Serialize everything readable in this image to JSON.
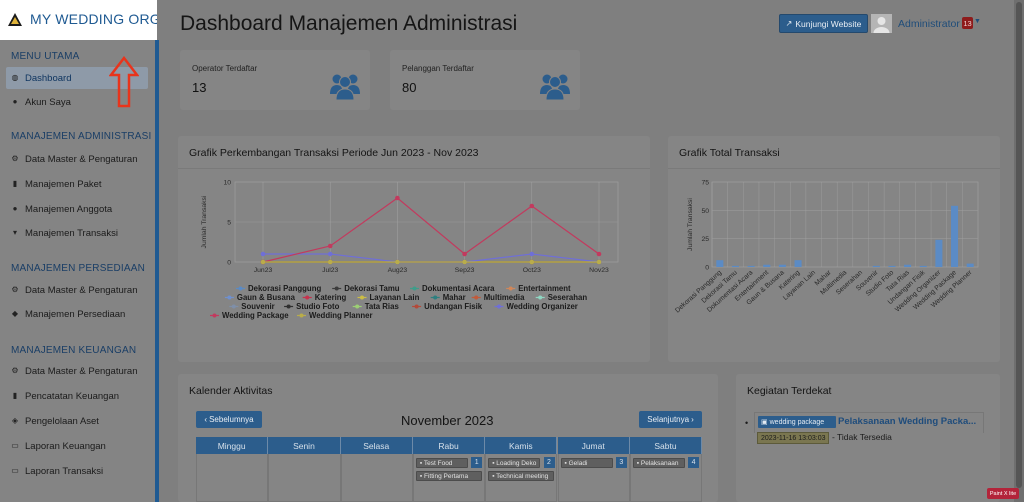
{
  "brand": {
    "name": "MY WEDDING ORGANIZER"
  },
  "sidebar": {
    "sections": [
      {
        "title": "MENU UTAMA",
        "items": [
          {
            "label": "Dashboard",
            "icon": "dashboard-icon",
            "active": true
          },
          {
            "label": "Akun Saya",
            "icon": "user-icon"
          }
        ]
      },
      {
        "title": "MANAJEMEN ADMINISTRASI",
        "items": [
          {
            "label": "Data Master & Pengaturan",
            "icon": "gears-icon"
          },
          {
            "label": "Manajemen Paket",
            "icon": "book-icon"
          },
          {
            "label": "Manajemen Anggota",
            "icon": "users-icon"
          },
          {
            "label": "Manajemen Transaksi",
            "icon": "cart-icon"
          }
        ]
      },
      {
        "title": "MANAJEMEN PERSEDIAAN",
        "items": [
          {
            "label": "Data Master & Pengaturan",
            "icon": "gears-icon"
          },
          {
            "label": "Manajemen Persediaan",
            "icon": "cubes-icon"
          }
        ]
      },
      {
        "title": "MANAJEMEN KEUANGAN",
        "items": [
          {
            "label": "Data Master & Pengaturan",
            "icon": "gears-icon"
          },
          {
            "label": "Pencatatan Keuangan",
            "icon": "book-icon"
          },
          {
            "label": "Pengelolaan Aset",
            "icon": "tag-icon"
          },
          {
            "label": "Laporan Keuangan",
            "icon": "report-icon"
          },
          {
            "label": "Laporan Transaksi",
            "icon": "report-icon"
          }
        ]
      }
    ]
  },
  "header": {
    "title": "Dashboard Manajemen Administrasi",
    "visit_button": "Kunjungi Website",
    "user_name": "Administrator",
    "notif_count": "13"
  },
  "stats": [
    {
      "label": "Operator Terdaftar",
      "value": "13",
      "icon": "users-icon"
    },
    {
      "label": "Pelanggan Terdaftar",
      "value": "80",
      "icon": "users-icon"
    }
  ],
  "colors": {
    "primary": "#2c5d8c",
    "sidebar_accent": "#1f5a92",
    "arrow": "#e8341c"
  },
  "line_chart_card": {
    "title": "Grafik Perkembangan Transaksi Periode Jun 2023 - Nov 2023"
  },
  "bar_chart_card": {
    "title": "Grafik Total Transaksi"
  },
  "chart_data": [
    {
      "type": "line",
      "ylabel": "Jumlah Transaksi",
      "ylim": [
        0,
        10
      ],
      "yticks": [
        0,
        5,
        10
      ],
      "categories": [
        "Jun23",
        "Jul23",
        "Aug23",
        "Sep23",
        "Oct23",
        "Nov23"
      ],
      "series": [
        {
          "name": "Dekorasi Panggung",
          "color": "#5b8bc5",
          "values": [
            0,
            0,
            0,
            0,
            0,
            0
          ]
        },
        {
          "name": "Dekorasi Tamu",
          "color": "#3c3c3c",
          "values": [
            0,
            0,
            0,
            0,
            0,
            0
          ]
        },
        {
          "name": "Dokumentasi Acara",
          "color": "#3f9d8a",
          "values": [
            0,
            0,
            0,
            0,
            0,
            0
          ]
        },
        {
          "name": "Entertainment",
          "color": "#d0875a",
          "values": [
            0,
            0,
            0,
            0,
            0,
            0
          ]
        },
        {
          "name": "Gaun & Busana",
          "color": "#6f90cf",
          "values": [
            0,
            0,
            0,
            0,
            0,
            0
          ]
        },
        {
          "name": "Katering",
          "color": "#c7324d",
          "values": [
            0,
            0,
            0,
            0,
            0,
            0
          ]
        },
        {
          "name": "Layanan Lain",
          "color": "#cbbd45",
          "values": [
            0,
            0,
            0,
            0,
            0,
            0
          ]
        },
        {
          "name": "Mahar",
          "color": "#2d7f7f",
          "values": [
            0,
            0,
            0,
            0,
            0,
            0
          ]
        },
        {
          "name": "Multimedia",
          "color": "#c25a3a",
          "values": [
            0,
            0,
            0,
            0,
            0,
            0
          ]
        },
        {
          "name": "Seserahan",
          "color": "#8fd6c2",
          "values": [
            0,
            0,
            0,
            0,
            0,
            0
          ]
        },
        {
          "name": "Souvenir",
          "color": "#7f8fa8",
          "values": [
            0,
            0,
            0,
            0,
            0,
            0
          ]
        },
        {
          "name": "Studio Foto",
          "color": "#2f2f2f",
          "values": [
            0,
            0,
            0,
            0,
            0,
            0
          ]
        },
        {
          "name": "Tata Rias",
          "color": "#9ccf74",
          "values": [
            0,
            0,
            0,
            0,
            0,
            0
          ]
        },
        {
          "name": "Undangan Fisik",
          "color": "#b34a3a",
          "values": [
            0,
            0,
            0,
            0,
            0,
            0
          ]
        },
        {
          "name": "Wedding Organizer",
          "color": "#6f6fd6",
          "values": [
            1,
            1,
            0,
            0,
            1,
            0
          ]
        },
        {
          "name": "Wedding Package",
          "color": "#c23a5e",
          "values": [
            0,
            2,
            8,
            1,
            7,
            1
          ]
        },
        {
          "name": "Wedding Planner",
          "color": "#b9ad4a",
          "values": [
            0,
            0,
            0,
            0,
            0,
            0
          ]
        }
      ]
    },
    {
      "type": "bar",
      "ylabel": "Jumlah Transaksi",
      "ylim": [
        0,
        75
      ],
      "yticks": [
        0,
        25,
        50,
        75
      ],
      "color": "#5b8bc5",
      "categories": [
        "Dekorasi Panggung",
        "Dekorasi Tamu",
        "Dokumentasi Acara",
        "Entertainment",
        "Gaun & Busana",
        "Katering",
        "Layanan Lain",
        "Mahar",
        "Multimedia",
        "Seserahan",
        "Souvenir",
        "Studio Foto",
        "Tata Rias",
        "Undangan Fisik",
        "Wedding Organizer",
        "Wedding Package",
        "Wedding Planner"
      ],
      "tick_labels": [
        "Dekorasi Panggung",
        "Dekorasi Tamu",
        "Dokumentasi Acara",
        "Entertainment",
        "Gaun & Busana",
        "Katering",
        "Layanan Lain",
        "Mahar",
        "Multimedia",
        "Seserahan",
        "Souvenir",
        "Studio Foto",
        "Tata Rias",
        "Undangan Fisik",
        "Wedding Organizer",
        "Wedding Package",
        "Wedding Planner"
      ],
      "values": [
        6,
        1,
        1,
        2,
        2,
        6,
        0,
        0,
        0,
        0,
        1,
        1,
        2,
        1,
        24,
        54,
        3
      ]
    }
  ],
  "calendar": {
    "title": "Kalender Aktivitas",
    "prev_label": "Sebelumnya",
    "next_label": "Selanjutnya",
    "month": "November 2023",
    "weekdays": [
      "Minggu",
      "Senin",
      "Selasa",
      "Rabu",
      "Kamis",
      "Jumat",
      "Sabtu"
    ],
    "days": [
      {
        "col": 3,
        "num": "1",
        "events": [
          "Test Food",
          "Fitting Pertama"
        ]
      },
      {
        "col": 4,
        "num": "2",
        "events": [
          "Loading Deko",
          "Technical meeting"
        ]
      },
      {
        "col": 5,
        "num": "3",
        "events": [
          "Geladi"
        ]
      },
      {
        "col": 6,
        "num": "4",
        "events": [
          "Pelaksanaan"
        ]
      }
    ]
  },
  "upcoming": {
    "title": "Kegiatan Terdekat",
    "tag": "wedding package",
    "event_title": "Pelaksanaan Wedding Packa...",
    "date": "2023-11-16 13:03:03",
    "status": "- Tidak Tersedia"
  },
  "overlay": {
    "badge": "Paint X lite"
  }
}
